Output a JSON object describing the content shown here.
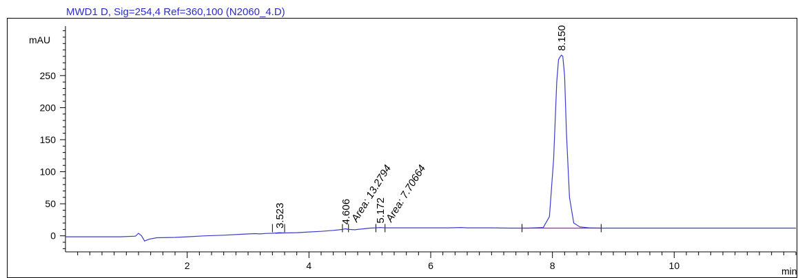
{
  "chart_data": {
    "type": "line",
    "title": "MWD1 D, Sig=254,4 Ref=360,100 (N2060_4.D)",
    "ylabel": "mAU",
    "xlabel": "min",
    "xlim": [
      0,
      12.0
    ],
    "ylim": [
      -25,
      325
    ],
    "x_ticks": [
      2,
      4,
      6,
      8,
      10
    ],
    "y_ticks": [
      0,
      50,
      100,
      150,
      200,
      250
    ],
    "grid": false,
    "colors": {
      "trace": "#3a3acc",
      "title": "#2b2bd0",
      "baseline": "#d000d0",
      "axis": "#000000"
    },
    "series": [
      {
        "x": [
          0.0,
          0.9,
          1.15,
          1.2,
          1.25,
          1.3,
          1.38,
          1.5,
          1.8,
          2.0,
          2.3,
          2.6,
          2.9,
          3.1,
          3.2,
          3.3,
          3.4,
          3.52,
          3.6,
          3.8,
          4.0,
          4.2,
          4.4,
          4.55,
          4.6,
          4.65,
          4.75,
          4.9,
          5.0,
          5.1,
          5.17,
          5.25,
          5.4,
          5.6,
          5.8,
          6.0,
          6.3,
          6.5,
          6.6,
          6.8,
          7.0,
          7.3,
          7.6,
          7.85,
          7.95,
          8.02,
          8.07,
          8.1,
          8.13,
          8.15,
          8.17,
          8.2,
          8.23,
          8.28,
          8.35,
          8.45,
          8.6,
          8.8,
          9.0,
          9.5,
          10.0,
          10.5,
          11.0,
          11.5,
          12.0
        ],
        "y": [
          -1.5,
          -1.5,
          -0.5,
          4,
          0,
          -8,
          -5,
          -3,
          -2.5,
          -1.5,
          0,
          1,
          2.5,
          3.5,
          3,
          3.8,
          4,
          5,
          4.5,
          5,
          6,
          7,
          8.5,
          10,
          11,
          10,
          9.5,
          11,
          12,
          12.5,
          13,
          12.5,
          12.5,
          12.5,
          12.5,
          12.5,
          12.5,
          13,
          12.5,
          12.5,
          12.5,
          12,
          12,
          13,
          30,
          120,
          240,
          275,
          280,
          282,
          280,
          250,
          160,
          60,
          20,
          14,
          12.5,
          12,
          12,
          12,
          12,
          12,
          12,
          12,
          12
        ]
      }
    ],
    "peaks": [
      {
        "rt": "3.523",
        "x": 3.523,
        "y": 5
      },
      {
        "rt": "4.606",
        "x": 4.606,
        "y": 11
      },
      {
        "rt": "5.172",
        "x": 5.172,
        "y": 13
      },
      {
        "rt": "8.150",
        "x": 8.15,
        "y": 282
      }
    ],
    "areas": [
      {
        "label": "Area: 13.2794",
        "x": 4.606
      },
      {
        "label": "Area: 7.70664",
        "x": 5.172
      }
    ],
    "baselines": [
      {
        "x": [
          3.45,
          3.6
        ],
        "y": [
          4,
          4.5
        ]
      },
      {
        "x": [
          4.6,
          4.65
        ],
        "y": [
          11,
          10
        ]
      },
      {
        "x": [
          7.5,
          8.8
        ],
        "y": [
          12,
          12
        ]
      }
    ],
    "event_marks": [
      3.4,
      3.6,
      4.55,
      4.65,
      5.1,
      5.25,
      7.5,
      8.8
    ]
  }
}
